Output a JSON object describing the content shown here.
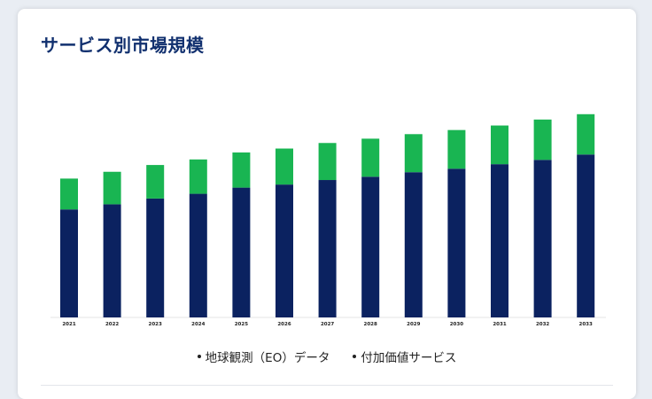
{
  "card": {
    "title": "サービス別市場規模"
  },
  "chart_data": {
    "type": "bar",
    "stacked": true,
    "title": "サービス別市場規模",
    "xlabel": "",
    "ylabel": "",
    "y_axis_visible": false,
    "grid": false,
    "legend_position": "bottom",
    "categories": [
      "2021",
      "2022",
      "2023",
      "2024",
      "2025",
      "2026",
      "2027",
      "2028",
      "2029",
      "2030",
      "2031",
      "2032",
      "2033"
    ],
    "ylim": [
      0,
      100
    ],
    "series": [
      {
        "name": "地球観測（EO）データ",
        "color": "#0b2260",
        "values": [
          52.5,
          55.0,
          57.8,
          60.1,
          63.1,
          64.6,
          66.8,
          68.4,
          70.6,
          72.3,
          74.5,
          76.6,
          79.2
        ]
      },
      {
        "name": "付加価値サービス",
        "color": "#19b552",
        "values": [
          15.0,
          15.8,
          16.3,
          16.7,
          17.1,
          17.5,
          18.0,
          18.5,
          18.5,
          18.8,
          18.8,
          19.6,
          19.6
        ]
      }
    ]
  }
}
